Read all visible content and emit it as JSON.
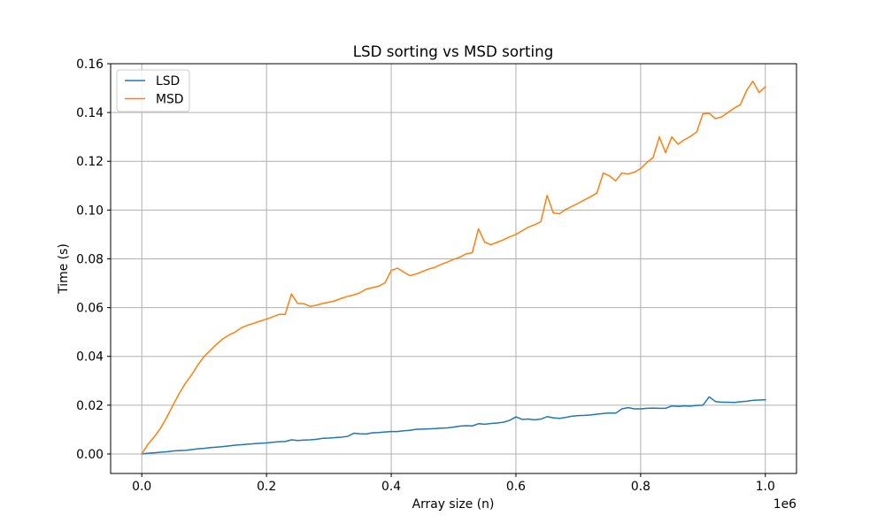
{
  "chart_data": {
    "type": "line",
    "title": "LSD sorting vs MSD sorting",
    "xlabel": "Array size (n)",
    "ylabel": "Time (s)",
    "x_offset_label": "1e6",
    "xlim": [
      -50000,
      1050000
    ],
    "ylim": [
      -0.008,
      0.16
    ],
    "xticks": [
      0,
      200000,
      400000,
      600000,
      800000,
      1000000
    ],
    "xtick_labels": [
      "0.0",
      "0.2",
      "0.4",
      "0.6",
      "0.8",
      "1.0"
    ],
    "yticks": [
      0.0,
      0.02,
      0.04,
      0.06,
      0.08,
      0.1,
      0.12,
      0.14,
      0.16
    ],
    "ytick_labels": [
      "0.00",
      "0.02",
      "0.04",
      "0.06",
      "0.08",
      "0.10",
      "0.12",
      "0.14",
      "0.16"
    ],
    "grid": true,
    "legend_position": "top-left",
    "x": [
      0,
      10000,
      20000,
      30000,
      40000,
      50000,
      60000,
      70000,
      80000,
      90000,
      100000,
      110000,
      120000,
      130000,
      140000,
      150000,
      160000,
      170000,
      180000,
      190000,
      200000,
      210000,
      220000,
      230000,
      240000,
      250000,
      260000,
      270000,
      280000,
      290000,
      300000,
      310000,
      320000,
      330000,
      340000,
      350000,
      360000,
      370000,
      380000,
      390000,
      400000,
      410000,
      420000,
      430000,
      440000,
      450000,
      460000,
      470000,
      480000,
      490000,
      500000,
      510000,
      520000,
      530000,
      540000,
      550000,
      560000,
      570000,
      580000,
      590000,
      600000,
      610000,
      620000,
      630000,
      640000,
      650000,
      660000,
      670000,
      680000,
      690000,
      700000,
      710000,
      720000,
      730000,
      740000,
      750000,
      760000,
      770000,
      780000,
      790000,
      800000,
      810000,
      820000,
      830000,
      840000,
      850000,
      860000,
      870000,
      880000,
      890000,
      900000,
      910000,
      920000,
      930000,
      940000,
      950000,
      960000,
      970000,
      980000,
      990000,
      1000000
    ],
    "series": [
      {
        "name": "LSD",
        "color": "#1f77b4",
        "values": [
          0.0,
          0.0003,
          0.0005,
          0.0007,
          0.0009,
          0.0012,
          0.0014,
          0.0015,
          0.0018,
          0.0021,
          0.0023,
          0.0026,
          0.0028,
          0.003,
          0.0033,
          0.0036,
          0.0038,
          0.004,
          0.0042,
          0.0044,
          0.0045,
          0.0048,
          0.005,
          0.0051,
          0.0058,
          0.0055,
          0.0057,
          0.0058,
          0.006,
          0.0064,
          0.0065,
          0.0067,
          0.0069,
          0.0072,
          0.0085,
          0.0083,
          0.0082,
          0.0087,
          0.0088,
          0.009,
          0.0092,
          0.0092,
          0.0095,
          0.0097,
          0.0101,
          0.0102,
          0.0103,
          0.0104,
          0.0106,
          0.0107,
          0.011,
          0.0114,
          0.0116,
          0.0115,
          0.0124,
          0.0122,
          0.0125,
          0.0127,
          0.013,
          0.0138,
          0.0152,
          0.0142,
          0.0143,
          0.014,
          0.0143,
          0.0153,
          0.0148,
          0.0146,
          0.015,
          0.0155,
          0.0157,
          0.0158,
          0.016,
          0.0163,
          0.0166,
          0.0168,
          0.0167,
          0.0185,
          0.019,
          0.0185,
          0.0185,
          0.0187,
          0.0188,
          0.0187,
          0.0187,
          0.0197,
          0.0195,
          0.0197,
          0.0196,
          0.0199,
          0.02,
          0.0234,
          0.0215,
          0.0212,
          0.0212,
          0.0211,
          0.0214,
          0.0216,
          0.022,
          0.0221,
          0.0222
        ]
      },
      {
        "name": "MSD",
        "color": "#ff7f0e",
        "values": [
          0.0,
          0.004,
          0.007,
          0.0105,
          0.015,
          0.02,
          0.0248,
          0.029,
          0.0325,
          0.0365,
          0.04,
          0.0425,
          0.045,
          0.0472,
          0.0488,
          0.05,
          0.0518,
          0.0528,
          0.0536,
          0.0545,
          0.0553,
          0.0562,
          0.0572,
          0.0572,
          0.0656,
          0.0617,
          0.0616,
          0.0605,
          0.061,
          0.0617,
          0.0622,
          0.0628,
          0.0638,
          0.0646,
          0.0652,
          0.0661,
          0.0676,
          0.0682,
          0.0688,
          0.0702,
          0.0752,
          0.0762,
          0.0746,
          0.0731,
          0.0738,
          0.0748,
          0.0758,
          0.0765,
          0.0777,
          0.0787,
          0.0798,
          0.0807,
          0.082,
          0.0825,
          0.0923,
          0.0868,
          0.0858,
          0.0868,
          0.0878,
          0.089,
          0.09,
          0.0915,
          0.093,
          0.094,
          0.0952,
          0.106,
          0.0988,
          0.0985,
          0.1003,
          0.1015,
          0.1028,
          0.1042,
          0.1055,
          0.107,
          0.1152,
          0.114,
          0.112,
          0.1152,
          0.1148,
          0.1155,
          0.117,
          0.1195,
          0.1215,
          0.13,
          0.1235,
          0.13,
          0.127,
          0.1288,
          0.1302,
          0.132,
          0.1395,
          0.1397,
          0.1375,
          0.1382,
          0.14,
          0.1418,
          0.1432,
          0.149,
          0.1528,
          0.1482,
          0.1505
        ]
      }
    ]
  }
}
